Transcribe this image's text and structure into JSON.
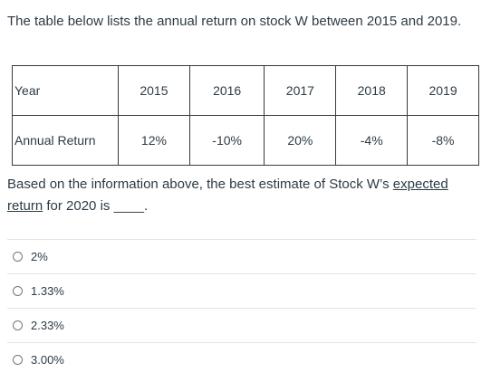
{
  "intro_text": "The table below lists the annual return on stock W between 2015 and 2019.",
  "table": {
    "year_label": "Year",
    "years": [
      "2015",
      "2016",
      "2017",
      "2018",
      "2019"
    ],
    "return_label": "Annual Return",
    "returns": [
      "12%",
      "-10%",
      "20%",
      "-4%",
      "-8%"
    ]
  },
  "question": {
    "part1": "Based on the information above, the best estimate of Stock W’s ",
    "underlined": "expected return",
    "part2": " for 2020 is ",
    "blank": "____",
    "end": "."
  },
  "answers": [
    "2%",
    "1.33%",
    "2.33%",
    "3.00%"
  ]
}
